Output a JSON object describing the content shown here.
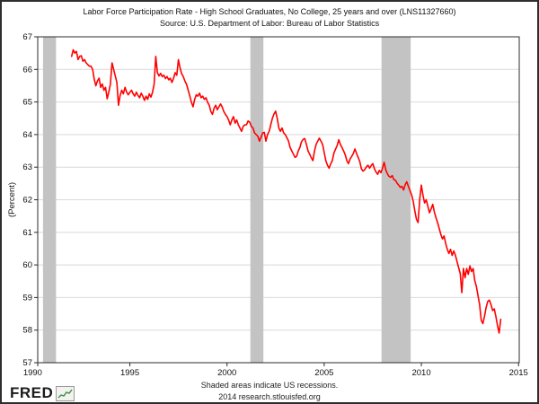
{
  "header": {
    "title": "Labor Force Participation Rate - High School Graduates, No College, 25 years and over (LNS11327660)",
    "source": "Source: U.S. Department of Labor: Bureau of Labor Statistics"
  },
  "footer": {
    "note": "Shaded areas indicate US recessions.",
    "credit": "2014 research.stlouisfed.org",
    "logo_text": "FRED"
  },
  "chart_data": {
    "type": "line",
    "title": "Labor Force Participation Rate - High School Graduates, No College, 25 years and over (LNS11327660)",
    "xlabel": "",
    "ylabel": "(Percent)",
    "xlim": [
      1990,
      2015.1
    ],
    "ylim": [
      57,
      67
    ],
    "x_ticks": [
      1990,
      1995,
      2000,
      2005,
      2010,
      2015
    ],
    "y_ticks": [
      57,
      58,
      59,
      60,
      61,
      62,
      63,
      64,
      65,
      66,
      67
    ],
    "grid": "horizontal",
    "legend_position": "none",
    "line_color": "#ff0000",
    "recession_band_color": "#c3c3c3",
    "gridline_color": "#d9d9d9",
    "frame_color": "#2b2b2b",
    "recessions": [
      {
        "start": 1990.53,
        "end": 1991.2
      },
      {
        "start": 2001.2,
        "end": 2001.87
      },
      {
        "start": 2007.95,
        "end": 2009.45
      }
    ],
    "series": [
      {
        "name": "LNS11327660",
        "frequency": "monthly",
        "start_year": 1992,
        "start_month": 1,
        "end_label": "Feb 2014",
        "values": [
          66.4,
          66.6,
          66.5,
          66.55,
          66.3,
          66.4,
          66.42,
          66.25,
          66.3,
          66.2,
          66.15,
          66.1,
          66.1,
          66.0,
          65.7,
          65.5,
          65.65,
          65.73,
          65.45,
          65.55,
          65.36,
          65.45,
          65.1,
          65.3,
          65.55,
          66.2,
          66.0,
          65.8,
          65.6,
          64.9,
          65.2,
          65.36,
          65.25,
          65.45,
          65.3,
          65.22,
          65.3,
          65.36,
          65.25,
          65.18,
          65.3,
          65.2,
          65.13,
          65.27,
          65.18,
          65.05,
          65.18,
          65.08,
          65.25,
          65.15,
          65.3,
          65.55,
          66.4,
          65.9,
          65.8,
          65.88,
          65.78,
          65.82,
          65.72,
          65.78,
          65.68,
          65.73,
          65.6,
          65.73,
          65.9,
          65.82,
          66.3,
          66.05,
          65.87,
          65.78,
          65.64,
          65.54,
          65.36,
          65.18,
          64.99,
          64.85,
          65.08,
          65.22,
          65.18,
          65.27,
          65.13,
          65.18,
          65.08,
          65.13,
          64.99,
          64.9,
          64.71,
          64.62,
          64.81,
          64.9,
          64.76,
          64.85,
          64.94,
          64.85,
          64.71,
          64.62,
          64.55,
          64.45,
          64.3,
          64.45,
          64.55,
          64.35,
          64.45,
          64.3,
          64.2,
          64.1,
          64.25,
          64.3,
          64.3,
          64.42,
          64.38,
          64.25,
          64.2,
          64.05,
          64.0,
          63.95,
          63.8,
          63.92,
          64.05,
          64.07,
          63.8,
          64.0,
          64.1,
          64.3,
          64.5,
          64.63,
          64.72,
          64.5,
          64.2,
          64.1,
          64.2,
          64.05,
          64.0,
          63.9,
          63.8,
          63.6,
          63.5,
          63.4,
          63.3,
          63.33,
          63.5,
          63.6,
          63.78,
          63.85,
          63.88,
          63.7,
          63.5,
          63.4,
          63.29,
          63.2,
          63.5,
          63.7,
          63.8,
          63.89,
          63.8,
          63.7,
          63.45,
          63.2,
          63.06,
          62.97,
          63.1,
          63.2,
          63.43,
          63.55,
          63.66,
          63.84,
          63.7,
          63.6,
          63.5,
          63.38,
          63.2,
          63.11,
          63.25,
          63.33,
          63.42,
          63.56,
          63.42,
          63.3,
          63.17,
          62.95,
          62.88,
          62.92,
          63.0,
          63.06,
          62.97,
          63.05,
          63.11,
          62.95,
          62.85,
          62.78,
          62.9,
          62.83,
          62.97,
          63.15,
          62.92,
          62.8,
          62.72,
          62.69,
          62.74,
          62.62,
          62.6,
          62.51,
          62.45,
          62.38,
          62.41,
          62.3,
          62.46,
          62.55,
          62.41,
          62.28,
          62.15,
          61.95,
          61.65,
          61.4,
          61.3,
          62.0,
          62.45,
          62.15,
          61.9,
          62.0,
          61.8,
          61.6,
          61.72,
          61.86,
          61.63,
          61.45,
          61.3,
          61.12,
          60.94,
          60.8,
          60.89,
          60.66,
          60.48,
          60.35,
          60.48,
          60.29,
          60.43,
          60.3,
          60.11,
          59.92,
          59.74,
          59.15,
          59.89,
          59.61,
          59.89,
          59.71,
          59.97,
          59.8,
          59.89,
          59.52,
          59.34,
          59.06,
          58.78,
          58.3,
          58.2,
          58.42,
          58.69,
          58.88,
          58.92,
          58.78,
          58.6,
          58.65,
          58.42,
          58.14,
          57.91,
          58.33
        ]
      }
    ]
  }
}
